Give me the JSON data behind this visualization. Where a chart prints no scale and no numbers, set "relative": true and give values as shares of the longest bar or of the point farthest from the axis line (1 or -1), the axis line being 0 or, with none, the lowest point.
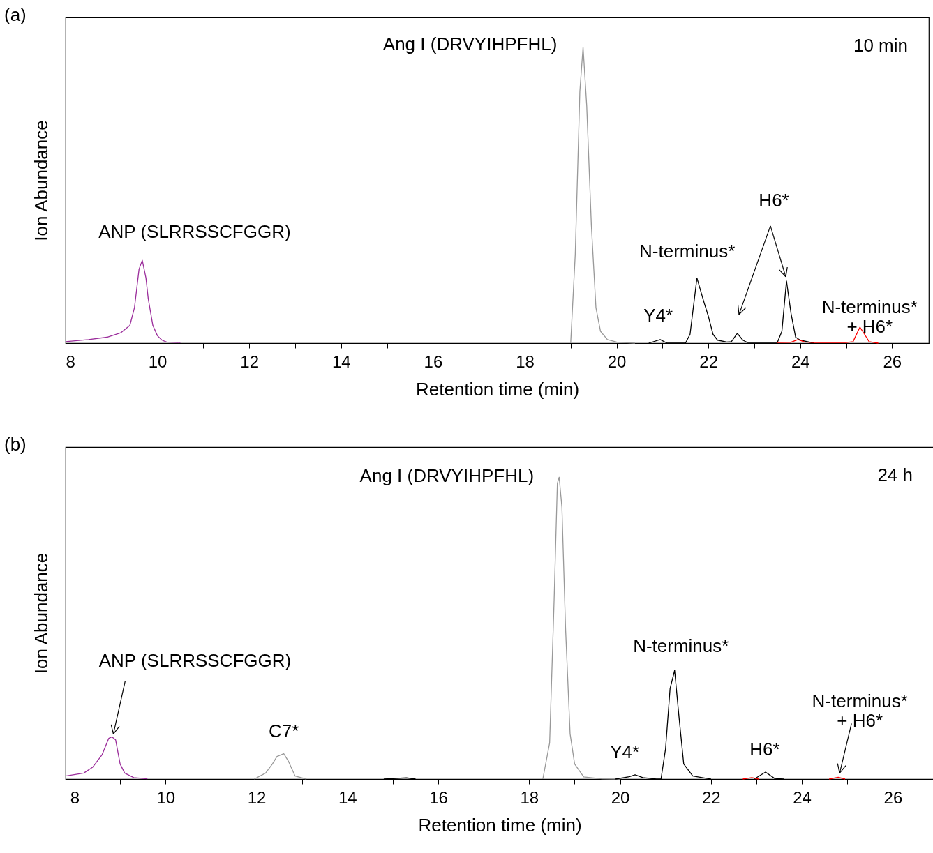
{
  "chart_data": [
    {
      "type": "line",
      "title": "(a)",
      "xlabel": "Retention time (min)",
      "ylabel": "Ion Abundance",
      "relative": true,
      "xlim": [
        8,
        26.8
      ],
      "xticks": [
        8,
        {
          "value": 9,
          "label": null
        },
        10,
        {
          "value": 11,
          "label": null
        },
        12,
        {
          "value": 13,
          "label": null
        },
        14,
        {
          "value": 15,
          "label": null
        },
        16,
        {
          "value": 17,
          "label": null
        },
        18,
        {
          "value": 19,
          "label": null
        },
        20,
        {
          "value": 21,
          "label": null
        },
        22,
        {
          "value": 23,
          "label": null
        },
        24,
        {
          "value": 25,
          "label": null
        },
        26
      ],
      "series": [
        {
          "color": "#9b2d9b",
          "x": [
            8,
            8.5,
            8.9,
            9.2,
            9.4,
            9.5,
            9.6,
            9.67,
            9.75,
            9.8,
            9.9,
            10.0,
            10.1,
            10.2,
            10.5
          ],
          "values": [
            0.005,
            0.012,
            0.02,
            0.035,
            0.06,
            0.12,
            0.25,
            0.28,
            0.22,
            0.15,
            0.06,
            0.025,
            0.01,
            0.004,
            0.002
          ]
        },
        {
          "color": "#999999",
          "x": [
            19.0,
            19.1,
            19.2,
            19.27,
            19.35,
            19.45,
            19.55,
            19.65,
            19.8,
            20.0,
            20.4
          ],
          "values": [
            0,
            0.3,
            0.85,
            1,
            0.8,
            0.4,
            0.12,
            0.04,
            0.012,
            0.004,
            0
          ]
        },
        {
          "color": "#000000",
          "x": [
            20.7,
            20.95,
            21.1,
            21.5,
            21.6,
            21.75,
            21.9,
            22.0,
            22.1,
            22.2,
            22.4,
            22.5,
            22.63,
            22.75,
            22.85,
            23.5,
            23.6,
            23.7,
            23.8,
            23.9,
            24.0,
            24.3
          ],
          "values": [
            0,
            0.012,
            0,
            0,
            0.03,
            0.22,
            0.14,
            0.09,
            0.03,
            0.01,
            0.004,
            0.005,
            0.033,
            0.01,
            0.002,
            0.002,
            0.04,
            0.21,
            0.1,
            0.02,
            0.01,
            0
          ]
        },
        {
          "color": "#ff0000",
          "x": [
            23.5,
            23.8,
            23.95,
            24.1,
            24.3,
            25.0,
            25.15,
            25.3,
            25.4,
            25.5,
            25.7
          ],
          "values": [
            0.002,
            0.003,
            0.012,
            0.004,
            0.002,
            0.002,
            0.005,
            0.054,
            0.03,
            0.005,
            0
          ]
        }
      ],
      "annotations": [
        {
          "text": "Ang I (DRVYIHPFHL)",
          "x": 19.27,
          "y": 1
        },
        {
          "text": "ANP (SLRRSSCFGGR)",
          "x": 9.67,
          "y": 0.28
        },
        {
          "text": "Y4*",
          "x": 20.95,
          "y": 0.012
        },
        {
          "text": "N-terminus*",
          "x": 21.75,
          "y": 0.22
        },
        {
          "text": "H6*",
          "x": 23.7,
          "y": 0.21
        },
        {
          "text": "N-terminus*\n+ H6*",
          "x": 25.3,
          "y": 0.054
        },
        "10 min"
      ]
    },
    {
      "type": "line",
      "title": "(b)",
      "xlabel": "Retention time (min)",
      "ylabel": "Ion Abundance",
      "relative": true,
      "xlim": [
        7.8,
        26.9
      ],
      "xticks": [
        8,
        {
          "value": 9,
          "label": null
        },
        10,
        {
          "value": 11,
          "label": null
        },
        12,
        {
          "value": 13,
          "label": null
        },
        14,
        {
          "value": 15,
          "label": null
        },
        16,
        {
          "value": 17,
          "label": null
        },
        18,
        {
          "value": 19,
          "label": null
        },
        20,
        {
          "value": 21,
          "label": null
        },
        22,
        {
          "value": 23,
          "label": null
        },
        24,
        {
          "value": 25,
          "label": null
        },
        26
      ],
      "series": [
        {
          "color": "#9b2d9b",
          "x": [
            7.8,
            8.2,
            8.4,
            8.6,
            8.75,
            8.82,
            8.9,
            9.0,
            9.1,
            9.3,
            9.6
          ],
          "values": [
            0.01,
            0.02,
            0.04,
            0.08,
            0.135,
            0.14,
            0.13,
            0.05,
            0.02,
            0.005,
            0.001
          ]
        },
        {
          "color": "#999999",
          "x": [
            11.95,
            12.2,
            12.35,
            12.45,
            12.6,
            12.7,
            12.85,
            13.1,
            13.2,
            18.3,
            18.45,
            18.55,
            18.62,
            18.66,
            18.72,
            18.8,
            18.9,
            19.0,
            19.2,
            19.6,
            20.0
          ],
          "values": [
            0,
            0.02,
            0.05,
            0.075,
            0.084,
            0.06,
            0.01,
            0,
            null,
            0,
            0.12,
            0.6,
            0.98,
            1,
            0.9,
            0.5,
            0.15,
            0.05,
            0.007,
            0.001,
            0
          ]
        },
        {
          "color": "#000000",
          "x": [
            14.8,
            15.3,
            15.5,
            15.6,
            19.9,
            20.2,
            20.33,
            20.5,
            20.8,
            20.9,
            21.0,
            21.1,
            21.2,
            21.3,
            21.4,
            21.6,
            22.0,
            22.1,
            22.95,
            23.2,
            23.4,
            23.6
          ],
          "values": [
            0,
            0.004,
            0,
            null,
            0,
            0.008,
            0.014,
            0.005,
            0,
            0,
            0.1,
            0.3,
            0.36,
            0.2,
            0.05,
            0.01,
            0,
            null,
            0,
            0.023,
            0.002,
            0
          ]
        },
        {
          "color": "#ff0000",
          "x": [
            22.7,
            22.9,
            23.05,
            23.1,
            24.6,
            24.8,
            24.95
          ],
          "values": [
            0,
            0.005,
            0,
            null,
            0,
            0.006,
            0
          ]
        }
      ],
      "annotations": [
        {
          "text": "Ang I (DRVYIHPFHL)",
          "x": 18.66,
          "y": 1
        },
        {
          "text": "ANP (SLRRSSCFGGR)",
          "x": 8.82,
          "y": 0.14
        },
        {
          "text": "C7*",
          "x": 12.6,
          "y": 0.084
        },
        {
          "text": "Y4*",
          "x": 20.33,
          "y": 0.014
        },
        {
          "text": "N-terminus*",
          "x": 21.2,
          "y": 0.36
        },
        {
          "text": "H6*",
          "x": 23.2,
          "y": 0.023
        },
        {
          "text": "N-terminus*\n+ H6*",
          "x": 24.8,
          "y": 0.006
        },
        "24 h"
      ]
    }
  ]
}
